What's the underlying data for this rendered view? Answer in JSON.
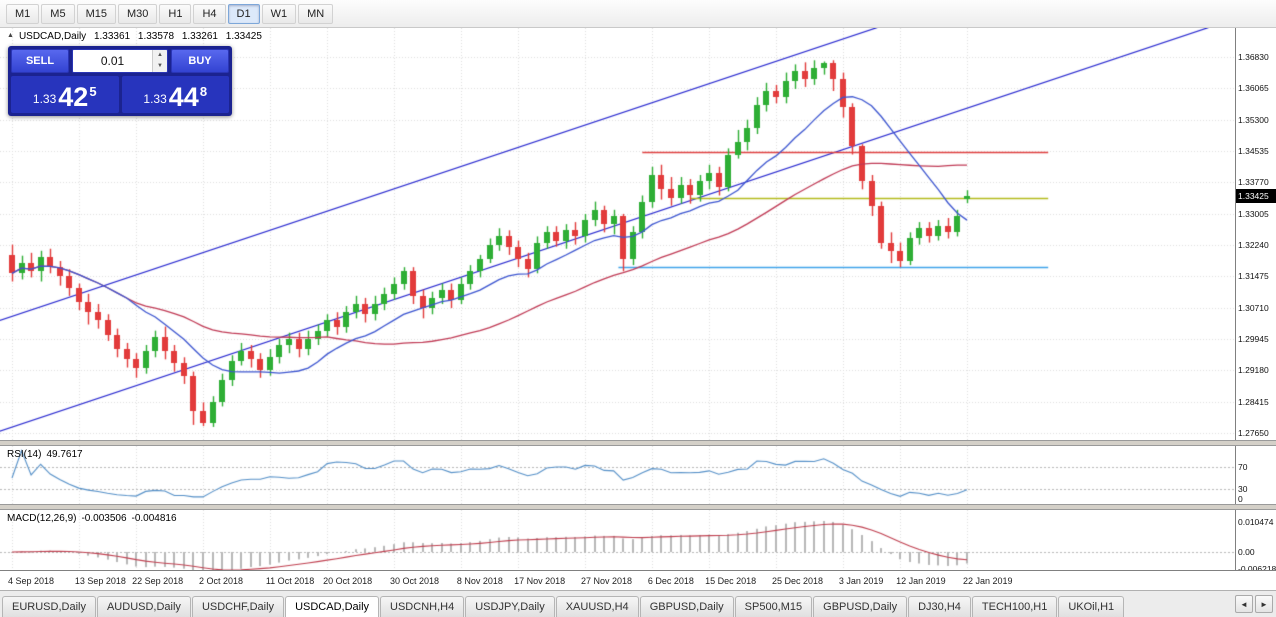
{
  "toolbar": {
    "timeframes": [
      "M1",
      "M5",
      "M15",
      "M30",
      "H1",
      "H4",
      "D1",
      "W1",
      "MN"
    ],
    "active": "D1"
  },
  "chart_header": {
    "symbol": "USDCAD,Daily",
    "open": "1.33361",
    "high": "1.33578",
    "low": "1.33261",
    "close": "1.33425"
  },
  "trade_panel": {
    "sell_label": "SELL",
    "buy_label": "BUY",
    "lot_size": "0.01",
    "spin_up": "▲",
    "spin_down": "▼",
    "sell_price": {
      "prefix": "1.33",
      "big": "42",
      "sup": "5"
    },
    "buy_price": {
      "prefix": "1.33",
      "big": "44",
      "sup": "8"
    }
  },
  "price_axis": {
    "labels": [
      "1.36830",
      "1.36065",
      "1.35300",
      "1.34535",
      "1.33770",
      "1.33005",
      "1.32240",
      "1.31475",
      "1.30710",
      "1.29945",
      "1.29180",
      "1.28415",
      "1.27650"
    ],
    "current": "1.33425"
  },
  "rsi": {
    "name": "RSI(14)",
    "value": "49.7617",
    "period": 14,
    "color": "#5590c8",
    "levels": [
      {
        "label": "70",
        "value": 70,
        "line": true
      },
      {
        "label": "30",
        "value": 30,
        "line": true
      },
      {
        "label": "0",
        "value": 0,
        "line": false
      }
    ]
  },
  "macd": {
    "name": "MACD(12,26,9)",
    "value_main": "-0.003506",
    "value_signal": "-0.004816",
    "fast": 12,
    "slow": 26,
    "signal": 9,
    "signal_color": "#c04050",
    "hist_color": "#b8b8b8",
    "axis_labels": [
      {
        "label": "0.010474",
        "value": 0.010474
      },
      {
        "label": "0.00",
        "value": 0
      },
      {
        "label": "-0.006218",
        "value": -0.006218
      }
    ]
  },
  "date_axis": [
    "4 Sep 2018",
    "13 Sep 2018",
    "22 Sep 2018",
    "2 Oct 2018",
    "11 Oct 2018",
    "20 Oct 2018",
    "30 Oct 2018",
    "8 Nov 2018",
    "17 Nov 2018",
    "27 Nov 2018",
    "6 Dec 2018",
    "15 Dec 2018",
    "25 Dec 2018",
    "3 Jan 2019",
    "12 Jan 2019",
    "22 Jan 2019"
  ],
  "tabs": {
    "items": [
      "EURUSD,Daily",
      "AUDUSD,Daily",
      "USDCHF,Daily",
      "USDCAD,Daily",
      "USDCNH,H4",
      "USDJPY,Daily",
      "XAUUSD,H4",
      "GBPUSD,Daily",
      "SP500,M15",
      "GBPUSD,Daily",
      "DJ30,H4",
      "TECH100,H1",
      "UKOil,H1"
    ],
    "active_index": 3,
    "scroll_left": "◄",
    "scroll_right": "►"
  },
  "chart_data": {
    "type": "candlestick",
    "symbol": "USDCAD",
    "timeframe": "Daily",
    "up_color": "#2eae35",
    "down_color": "#e23b3b",
    "grid_color": "#dedede",
    "price_range": [
      1.27481,
      1.37538
    ],
    "tick_indices": [
      0,
      7,
      13,
      20,
      27,
      33,
      40,
      47,
      53,
      60,
      67,
      73,
      80,
      87,
      93,
      100
    ],
    "overlays": {
      "ma_fast": {
        "type": "SMA",
        "period": 13,
        "color": "#3c55d0"
      },
      "ma_slow": {
        "type": "SMA",
        "period": 34,
        "color": "#c03a55"
      },
      "hlines": [
        {
          "price": 1.345,
          "from_idx": 66,
          "to_idx": 108.5,
          "color": "#e04040"
        },
        {
          "price": 1.334,
          "from_idx": 71,
          "to_idx": 108.5,
          "color": "#b4ba1c"
        },
        {
          "price": 1.317,
          "from_idx": 63.5,
          "to_idx": 108.5,
          "color": "#3fa3ea"
        }
      ],
      "channel": [
        {
          "x1_idx": -1.5,
          "p1": 1.2768,
          "x2_idx": 128,
          "p2": 1.3776,
          "color": "#2a2ad0"
        },
        {
          "x1_idx": -1.5,
          "p1": 1.3038,
          "x2_idx": 128,
          "p2": 1.4046,
          "color": "#2a2ad0"
        }
      ]
    },
    "candles": [
      [
        "2018.09.04",
        1.32,
        1.3225,
        1.3135,
        1.3155
      ],
      [
        "2018.09.05",
        1.3155,
        1.3198,
        1.314,
        1.318
      ],
      [
        "2018.09.06",
        1.318,
        1.3205,
        1.3145,
        1.316
      ],
      [
        "2018.09.07",
        1.316,
        1.321,
        1.3135,
        1.3195
      ],
      [
        "2018.09.10",
        1.3195,
        1.3215,
        1.3155,
        1.317
      ],
      [
        "2018.09.11",
        1.317,
        1.3185,
        1.3125,
        1.3148
      ],
      [
        "2018.09.12",
        1.3148,
        1.3165,
        1.31,
        1.312
      ],
      [
        "2018.09.13",
        1.312,
        1.313,
        1.3065,
        1.3085
      ],
      [
        "2018.09.14",
        1.3085,
        1.3105,
        1.303,
        1.306
      ],
      [
        "2018.09.17",
        1.306,
        1.308,
        1.302,
        1.304
      ],
      [
        "2018.09.18",
        1.304,
        1.3055,
        1.299,
        1.3005
      ],
      [
        "2018.09.19",
        1.3005,
        1.302,
        1.295,
        1.297
      ],
      [
        "2018.09.20",
        1.297,
        1.2985,
        1.2925,
        1.2945
      ],
      [
        "2018.09.21",
        1.2945,
        1.296,
        1.29,
        1.2925
      ],
      [
        "2018.09.24",
        1.2925,
        1.298,
        1.291,
        1.2965
      ],
      [
        "2018.09.25",
        1.2965,
        1.3015,
        1.295,
        1.3
      ],
      [
        "2018.09.26",
        1.3,
        1.3025,
        1.2945,
        1.2965
      ],
      [
        "2018.09.27",
        1.2965,
        1.298,
        1.2915,
        1.2935
      ],
      [
        "2018.09.28",
        1.2935,
        1.295,
        1.2885,
        1.2905
      ],
      [
        "2018.10.01",
        1.2905,
        1.2915,
        1.2785,
        1.282
      ],
      [
        "2018.10.02",
        1.282,
        1.284,
        1.2782,
        1.279
      ],
      [
        "2018.10.03",
        1.279,
        1.2855,
        1.278,
        1.284
      ],
      [
        "2018.10.04",
        1.284,
        1.291,
        1.283,
        1.2895
      ],
      [
        "2018.10.05",
        1.2895,
        1.2955,
        1.288,
        1.294
      ],
      [
        "2018.10.08",
        1.294,
        1.2985,
        1.293,
        1.2965
      ],
      [
        "2018.10.09",
        1.2965,
        1.298,
        1.2925,
        1.2945
      ],
      [
        "2018.10.10",
        1.2945,
        1.296,
        1.29,
        1.292
      ],
      [
        "2018.10.11",
        1.292,
        1.297,
        1.2905,
        1.295
      ],
      [
        "2018.10.12",
        1.295,
        1.2995,
        1.2935,
        1.298
      ],
      [
        "2018.10.15",
        1.298,
        1.301,
        1.296,
        1.2995
      ],
      [
        "2018.10.16",
        1.2995,
        1.301,
        1.295,
        1.297
      ],
      [
        "2018.10.17",
        1.297,
        1.3015,
        1.2955,
        1.2995
      ],
      [
        "2018.10.18",
        1.2995,
        1.303,
        1.298,
        1.3015
      ],
      [
        "2018.10.19",
        1.3015,
        1.3055,
        1.3,
        1.304
      ],
      [
        "2018.10.22",
        1.304,
        1.306,
        1.3005,
        1.3025
      ],
      [
        "2018.10.23",
        1.3025,
        1.3075,
        1.301,
        1.306
      ],
      [
        "2018.10.24",
        1.306,
        1.31,
        1.3045,
        1.308
      ],
      [
        "2018.10.25",
        1.308,
        1.3095,
        1.3035,
        1.3055
      ],
      [
        "2018.10.26",
        1.3055,
        1.31,
        1.304,
        1.308
      ],
      [
        "2018.10.29",
        1.308,
        1.312,
        1.3065,
        1.3105
      ],
      [
        "2018.10.30",
        1.3105,
        1.3145,
        1.309,
        1.313
      ],
      [
        "2018.10.31",
        1.313,
        1.317,
        1.3115,
        1.316
      ],
      [
        "2018.11.01",
        1.316,
        1.317,
        1.308,
        1.31
      ],
      [
        "2018.11.02",
        1.31,
        1.3115,
        1.3045,
        1.307
      ],
      [
        "2018.11.05",
        1.307,
        1.311,
        1.3055,
        1.3095
      ],
      [
        "2018.11.06",
        1.3095,
        1.313,
        1.308,
        1.3115
      ],
      [
        "2018.11.07",
        1.3115,
        1.313,
        1.307,
        1.309
      ],
      [
        "2018.11.08",
        1.309,
        1.3145,
        1.308,
        1.313
      ],
      [
        "2018.11.09",
        1.313,
        1.3175,
        1.3115,
        1.316
      ],
      [
        "2018.11.12",
        1.316,
        1.32,
        1.3145,
        1.319
      ],
      [
        "2018.11.13",
        1.319,
        1.324,
        1.318,
        1.3225
      ],
      [
        "2018.11.14",
        1.3225,
        1.3265,
        1.321,
        1.3245
      ],
      [
        "2018.11.15",
        1.3245,
        1.326,
        1.32,
        1.322
      ],
      [
        "2018.11.16",
        1.322,
        1.3235,
        1.317,
        1.319
      ],
      [
        "2018.11.19",
        1.319,
        1.3205,
        1.3145,
        1.3165
      ],
      [
        "2018.11.20",
        1.3165,
        1.3245,
        1.3155,
        1.323
      ],
      [
        "2018.11.21",
        1.323,
        1.327,
        1.3215,
        1.3255
      ],
      [
        "2018.11.22",
        1.3255,
        1.327,
        1.322,
        1.3235
      ],
      [
        "2018.11.23",
        1.3235,
        1.3275,
        1.3215,
        1.326
      ],
      [
        "2018.11.26",
        1.326,
        1.328,
        1.3225,
        1.3245
      ],
      [
        "2018.11.27",
        1.3245,
        1.33,
        1.323,
        1.3285
      ],
      [
        "2018.11.28",
        1.3285,
        1.333,
        1.327,
        1.331
      ],
      [
        "2018.11.29",
        1.331,
        1.332,
        1.3255,
        1.3275
      ],
      [
        "2018.11.30",
        1.3275,
        1.331,
        1.325,
        1.3295
      ],
      [
        "2018.12.03",
        1.3295,
        1.33,
        1.316,
        1.319
      ],
      [
        "2018.12.04",
        1.319,
        1.327,
        1.3175,
        1.3255
      ],
      [
        "2018.12.05",
        1.3255,
        1.3345,
        1.324,
        1.333
      ],
      [
        "2018.12.06",
        1.333,
        1.3415,
        1.3315,
        1.3395
      ],
      [
        "2018.12.07",
        1.3395,
        1.342,
        1.3335,
        1.336
      ],
      [
        "2018.12.10",
        1.336,
        1.339,
        1.332,
        1.334
      ],
      [
        "2018.12.11",
        1.334,
        1.339,
        1.3325,
        1.337
      ],
      [
        "2018.12.12",
        1.337,
        1.3385,
        1.3325,
        1.3345
      ],
      [
        "2018.12.13",
        1.3345,
        1.3395,
        1.333,
        1.338
      ],
      [
        "2018.12.14",
        1.338,
        1.342,
        1.336,
        1.34
      ],
      [
        "2018.12.17",
        1.34,
        1.3415,
        1.3345,
        1.3365
      ],
      [
        "2018.12.18",
        1.3365,
        1.346,
        1.3355,
        1.3445
      ],
      [
        "2018.12.19",
        1.3445,
        1.3505,
        1.3435,
        1.3475
      ],
      [
        "2018.12.20",
        1.3475,
        1.353,
        1.3455,
        1.351
      ],
      [
        "2018.12.21",
        1.351,
        1.3585,
        1.3495,
        1.3565
      ],
      [
        "2018.12.24",
        1.3565,
        1.362,
        1.355,
        1.36
      ],
      [
        "2018.12.25",
        1.36,
        1.3615,
        1.357,
        1.3585
      ],
      [
        "2018.12.26",
        1.3585,
        1.3645,
        1.357,
        1.3625
      ],
      [
        "2018.12.27",
        1.3625,
        1.3665,
        1.3605,
        1.365
      ],
      [
        "2018.12.28",
        1.365,
        1.367,
        1.361,
        1.363
      ],
      [
        "2018.12.31",
        1.363,
        1.3675,
        1.3615,
        1.3655
      ],
      [
        "2019.01.01",
        1.3655,
        1.3672,
        1.364,
        1.3668
      ],
      [
        "2019.01.02",
        1.3668,
        1.3675,
        1.36,
        1.363
      ],
      [
        "2019.01.03",
        1.363,
        1.3645,
        1.3535,
        1.356
      ],
      [
        "2019.01.04",
        1.356,
        1.357,
        1.3445,
        1.3465
      ],
      [
        "2019.01.07",
        1.3465,
        1.347,
        1.336,
        1.338
      ],
      [
        "2019.01.08",
        1.338,
        1.3395,
        1.3295,
        1.332
      ],
      [
        "2019.01.09",
        1.332,
        1.333,
        1.3215,
        1.323
      ],
      [
        "2019.01.10",
        1.323,
        1.3255,
        1.318,
        1.321
      ],
      [
        "2019.01.11",
        1.321,
        1.323,
        1.317,
        1.3185
      ],
      [
        "2019.01.14",
        1.3185,
        1.3255,
        1.3175,
        1.324
      ],
      [
        "2019.01.15",
        1.324,
        1.328,
        1.3225,
        1.3265
      ],
      [
        "2019.01.16",
        1.3265,
        1.328,
        1.323,
        1.3245
      ],
      [
        "2019.01.17",
        1.3245,
        1.3285,
        1.3235,
        1.327
      ],
      [
        "2019.01.18",
        1.327,
        1.329,
        1.324,
        1.3255
      ],
      [
        "2019.01.21",
        1.3255,
        1.331,
        1.3245,
        1.3295
      ],
      [
        "2019.01.22",
        1.33361,
        1.33578,
        1.33261,
        1.33425
      ]
    ]
  }
}
